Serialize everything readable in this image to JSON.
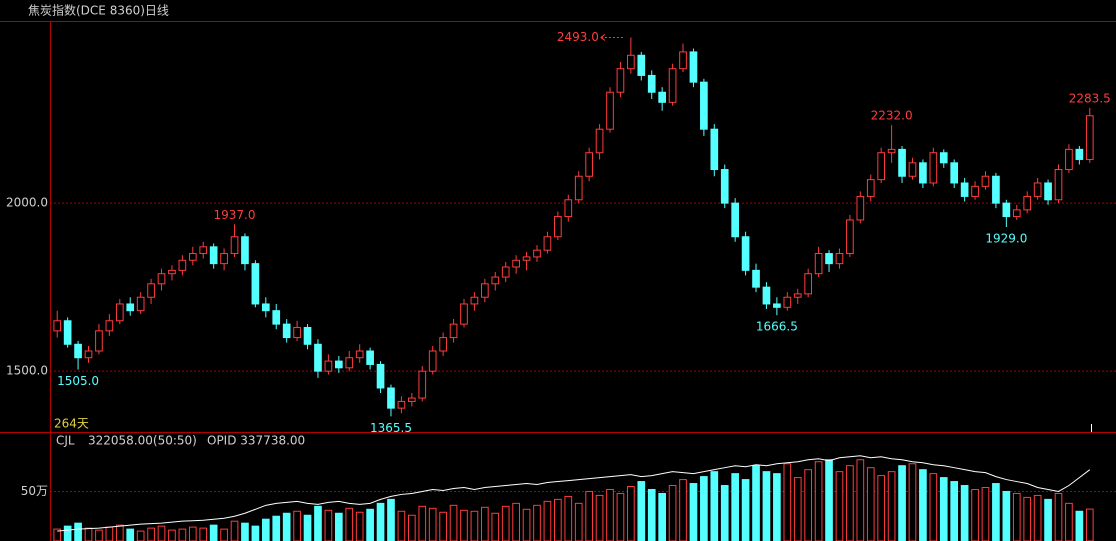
{
  "chart_data": [
    {
      "type": "candlestick",
      "title": "焦炭指数(DCE 8360)日线",
      "period_label": "264天",
      "up_color": "#ff3c3c",
      "down_color": "#54ffff",
      "grid": true,
      "ylim": [
        1319,
        2539
      ],
      "yticks": [
        {
          "value": 1500,
          "label": "1500.0"
        },
        {
          "value": 2000,
          "label": "2000.0"
        }
      ],
      "ohlc": [
        [
          1620,
          1680,
          1600,
          1650
        ],
        [
          1650,
          1660,
          1570,
          1580
        ],
        [
          1580,
          1590,
          1505,
          1540
        ],
        [
          1540,
          1575,
          1525,
          1560
        ],
        [
          1560,
          1640,
          1550,
          1620
        ],
        [
          1620,
          1670,
          1605,
          1650
        ],
        [
          1650,
          1715,
          1640,
          1700
        ],
        [
          1700,
          1720,
          1665,
          1680
        ],
        [
          1680,
          1735,
          1670,
          1720
        ],
        [
          1720,
          1775,
          1700,
          1760
        ],
        [
          1760,
          1805,
          1740,
          1790
        ],
        [
          1790,
          1815,
          1770,
          1800
        ],
        [
          1800,
          1845,
          1785,
          1830
        ],
        [
          1830,
          1870,
          1815,
          1850
        ],
        [
          1850,
          1885,
          1835,
          1870
        ],
        [
          1870,
          1880,
          1805,
          1820
        ],
        [
          1820,
          1865,
          1800,
          1850
        ],
        [
          1850,
          1937,
          1840,
          1900
        ],
        [
          1900,
          1910,
          1800,
          1820
        ],
        [
          1820,
          1830,
          1690,
          1700
        ],
        [
          1700,
          1720,
          1660,
          1680
        ],
        [
          1680,
          1700,
          1625,
          1640
        ],
        [
          1640,
          1655,
          1585,
          1600
        ],
        [
          1600,
          1650,
          1590,
          1630
        ],
        [
          1630,
          1640,
          1565,
          1580
        ],
        [
          1580,
          1595,
          1480,
          1500
        ],
        [
          1500,
          1550,
          1490,
          1530
        ],
        [
          1530,
          1545,
          1495,
          1510
        ],
        [
          1510,
          1560,
          1500,
          1540
        ],
        [
          1540,
          1580,
          1525,
          1560
        ],
        [
          1560,
          1570,
          1505,
          1520
        ],
        [
          1520,
          1530,
          1435,
          1450
        ],
        [
          1450,
          1460,
          1365.5,
          1390
        ],
        [
          1390,
          1425,
          1375,
          1410
        ],
        [
          1410,
          1435,
          1395,
          1420
        ],
        [
          1420,
          1515,
          1410,
          1500
        ],
        [
          1500,
          1575,
          1490,
          1560
        ],
        [
          1560,
          1615,
          1545,
          1600
        ],
        [
          1600,
          1655,
          1585,
          1640
        ],
        [
          1640,
          1715,
          1630,
          1700
        ],
        [
          1700,
          1735,
          1680,
          1720
        ],
        [
          1720,
          1775,
          1705,
          1760
        ],
        [
          1760,
          1795,
          1740,
          1780
        ],
        [
          1780,
          1825,
          1765,
          1810
        ],
        [
          1810,
          1845,
          1790,
          1830
        ],
        [
          1830,
          1855,
          1800,
          1840
        ],
        [
          1840,
          1875,
          1825,
          1860
        ],
        [
          1860,
          1915,
          1850,
          1900
        ],
        [
          1900,
          1975,
          1890,
          1960
        ],
        [
          1960,
          2025,
          1945,
          2010
        ],
        [
          2010,
          2095,
          2000,
          2080
        ],
        [
          2080,
          2165,
          2065,
          2150
        ],
        [
          2150,
          2235,
          2130,
          2220
        ],
        [
          2220,
          2345,
          2210,
          2330
        ],
        [
          2330,
          2420,
          2315,
          2400
        ],
        [
          2400,
          2493,
          2385,
          2440
        ],
        [
          2440,
          2450,
          2365,
          2380
        ],
        [
          2380,
          2395,
          2310,
          2330
        ],
        [
          2330,
          2345,
          2275,
          2300
        ],
        [
          2300,
          2415,
          2290,
          2400
        ],
        [
          2400,
          2475,
          2390,
          2450
        ],
        [
          2450,
          2460,
          2345,
          2360
        ],
        [
          2360,
          2370,
          2200,
          2220
        ],
        [
          2220,
          2235,
          2080,
          2100
        ],
        [
          2100,
          2115,
          1985,
          2000
        ],
        [
          2000,
          2015,
          1885,
          1900
        ],
        [
          1900,
          1915,
          1785,
          1800
        ],
        [
          1800,
          1820,
          1735,
          1750
        ],
        [
          1750,
          1765,
          1685,
          1700
        ],
        [
          1700,
          1720,
          1666.5,
          1690
        ],
        [
          1690,
          1735,
          1680,
          1720
        ],
        [
          1720,
          1745,
          1700,
          1730
        ],
        [
          1730,
          1805,
          1720,
          1790
        ],
        [
          1790,
          1870,
          1780,
          1850
        ],
        [
          1850,
          1860,
          1795,
          1820
        ],
        [
          1820,
          1865,
          1805,
          1850
        ],
        [
          1850,
          1965,
          1840,
          1950
        ],
        [
          1950,
          2035,
          1940,
          2020
        ],
        [
          2020,
          2085,
          2005,
          2070
        ],
        [
          2070,
          2165,
          2060,
          2150
        ],
        [
          2150,
          2232,
          2120,
          2160
        ],
        [
          2160,
          2170,
          2060,
          2080
        ],
        [
          2080,
          2135,
          2070,
          2120
        ],
        [
          2120,
          2130,
          2045,
          2060
        ],
        [
          2060,
          2165,
          2050,
          2150
        ],
        [
          2150,
          2160,
          2105,
          2120
        ],
        [
          2120,
          2130,
          2045,
          2060
        ],
        [
          2060,
          2075,
          2005,
          2020
        ],
        [
          2020,
          2065,
          2010,
          2050
        ],
        [
          2050,
          2095,
          2040,
          2080
        ],
        [
          2080,
          2090,
          1985,
          2000
        ],
        [
          2000,
          2010,
          1929,
          1960
        ],
        [
          1960,
          1995,
          1950,
          1980
        ],
        [
          1980,
          2035,
          1970,
          2020
        ],
        [
          2020,
          2075,
          2010,
          2060
        ],
        [
          2060,
          2070,
          1995,
          2010
        ],
        [
          2010,
          2115,
          2000,
          2100
        ],
        [
          2100,
          2175,
          2090,
          2160
        ],
        [
          2160,
          2170,
          2115,
          2130
        ],
        [
          2130,
          2283.5,
          2120,
          2260
        ]
      ],
      "annotations": [
        {
          "index": 2,
          "value": 1505,
          "label": "1505.0",
          "position": "below"
        },
        {
          "index": 17,
          "value": 1937,
          "label": "1937.0",
          "position": "above"
        },
        {
          "index": 32,
          "value": 1365.5,
          "label": "1365.5",
          "position": "below"
        },
        {
          "index": 55,
          "value": 2493,
          "label": "2493.0",
          "position": "left"
        },
        {
          "index": 69,
          "value": 1666.5,
          "label": "1666.5",
          "position": "below"
        },
        {
          "index": 80,
          "value": 2232,
          "label": "2232.0",
          "position": "above"
        },
        {
          "index": 91,
          "value": 1929,
          "label": "1929.0",
          "position": "below"
        },
        {
          "index": 99,
          "value": 2283.5,
          "label": "2283.5",
          "position": "above"
        }
      ]
    },
    {
      "type": "volume",
      "title": "CJL",
      "volume_label": "322058.00(50:50)",
      "oi_label": "OPID 337738.00",
      "line_color": "#ffffff",
      "grid": true,
      "ylim": [
        0,
        1080000
      ],
      "yticks": [
        {
          "value": 500000,
          "label": "50万"
        }
      ],
      "values": [
        120000,
        150000,
        180000,
        130000,
        110000,
        140000,
        160000,
        120000,
        100000,
        130000,
        150000,
        110000,
        120000,
        140000,
        130000,
        160000,
        120000,
        200000,
        180000,
        150000,
        220000,
        250000,
        280000,
        300000,
        260000,
        350000,
        310000,
        280000,
        330000,
        290000,
        320000,
        380000,
        420000,
        300000,
        260000,
        350000,
        330000,
        290000,
        360000,
        310000,
        300000,
        340000,
        280000,
        350000,
        380000,
        320000,
        360000,
        400000,
        420000,
        450000,
        380000,
        500000,
        460000,
        520000,
        480000,
        550000,
        600000,
        520000,
        480000,
        560000,
        620000,
        580000,
        650000,
        700000,
        560000,
        680000,
        620000,
        760000,
        700000,
        680000,
        780000,
        640000,
        720000,
        800000,
        820000,
        700000,
        760000,
        820000,
        740000,
        660000,
        700000,
        760000,
        780000,
        720000,
        680000,
        640000,
        600000,
        560000,
        520000,
        540000,
        580000,
        500000,
        480000,
        440000,
        460000,
        420000,
        480000,
        380000,
        300000,
        322058
      ],
      "line_values": [
        100000,
        110000,
        120000,
        125000,
        130000,
        140000,
        150000,
        160000,
        170000,
        175000,
        180000,
        190000,
        200000,
        205000,
        210000,
        220000,
        230000,
        250000,
        280000,
        320000,
        360000,
        380000,
        390000,
        400000,
        380000,
        370000,
        390000,
        400000,
        380000,
        370000,
        380000,
        420000,
        450000,
        470000,
        480000,
        500000,
        520000,
        510000,
        530000,
        540000,
        520000,
        540000,
        550000,
        560000,
        570000,
        580000,
        570000,
        590000,
        600000,
        610000,
        620000,
        630000,
        640000,
        650000,
        660000,
        670000,
        650000,
        660000,
        680000,
        700000,
        690000,
        680000,
        700000,
        720000,
        740000,
        760000,
        750000,
        770000,
        760000,
        780000,
        790000,
        800000,
        820000,
        830000,
        810000,
        840000,
        850000,
        860000,
        840000,
        850000,
        830000,
        820000,
        800000,
        790000,
        770000,
        760000,
        740000,
        720000,
        700000,
        690000,
        650000,
        620000,
        600000,
        580000,
        540000,
        520000,
        500000,
        560000,
        640000,
        720000
      ]
    }
  ]
}
